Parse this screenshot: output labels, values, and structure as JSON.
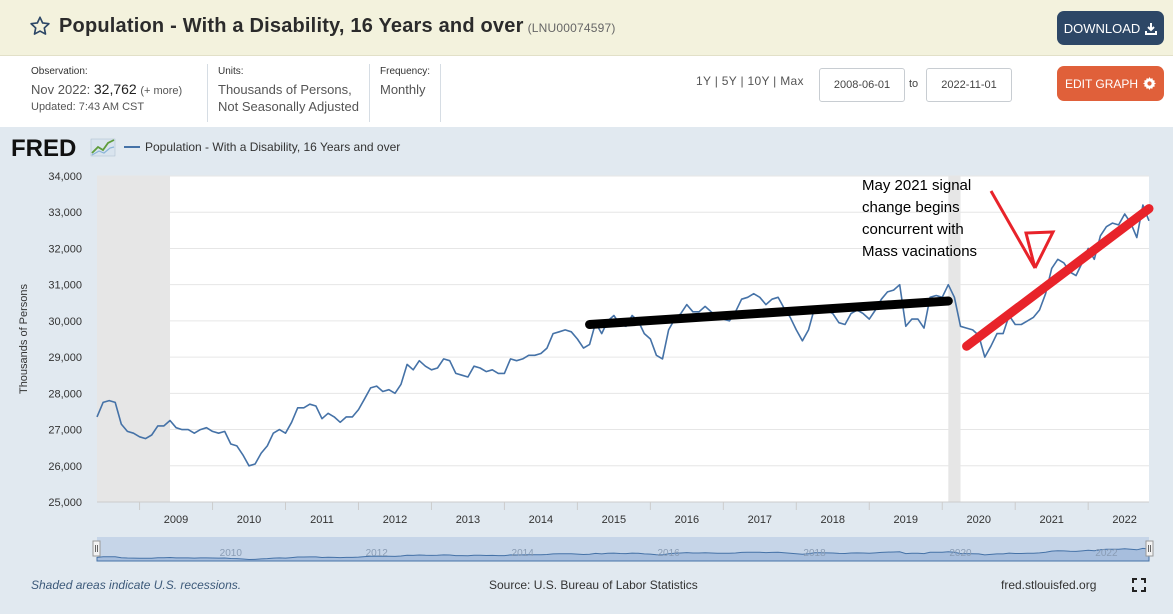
{
  "header": {
    "title": "Population - With a Disability, 16 Years and over",
    "series_id": "(LNU00074597)",
    "download_label": "DOWNLOAD"
  },
  "meta": {
    "observation_label": "Observation:",
    "observation_date": "Nov 2022:",
    "observation_value": "32,762",
    "observation_more": "(+ more)",
    "updated": "Updated: 7:43 AM CST",
    "units_label": "Units:",
    "units_line1": "Thousands of Persons,",
    "units_line2": "Not Seasonally Adjusted",
    "frequency_label": "Frequency:",
    "frequency_value": "Monthly",
    "range_links": "1Y | 5Y | 10Y | Max",
    "date_from": "2008-06-01",
    "date_to_label": "to",
    "date_to": "2022-11-01",
    "edit_label": "EDIT GRAPH"
  },
  "footer": {
    "recession_note": "Shaded areas indicate U.S. recessions.",
    "source": "Source: U.S. Bureau of Labor Statistics",
    "site": "fred.stlouisfed.org"
  },
  "logo_text": "FRED",
  "colors": {
    "series": "#4572a7",
    "annotation_black": "#000000",
    "annotation_red": "#e8232a",
    "download_button": "#2d4766",
    "edit_button": "#e0603a",
    "recession": "#e6e6e6"
  },
  "chart_data": {
    "type": "line",
    "title": "Population - With a Disability, 16 Years and over",
    "ylabel": "Thousands of Persons",
    "xlabel": "",
    "ylim": [
      25000,
      34000
    ],
    "yticks": [
      25000,
      26000,
      27000,
      28000,
      29000,
      30000,
      31000,
      32000,
      33000,
      34000
    ],
    "ytick_labels": [
      "25,000",
      "26,000",
      "27,000",
      "28,000",
      "29,000",
      "30,000",
      "31,000",
      "32,000",
      "33,000",
      "34,000"
    ],
    "xtick_labels": [
      "2009",
      "2010",
      "2011",
      "2012",
      "2013",
      "2014",
      "2015",
      "2016",
      "2017",
      "2018",
      "2019",
      "2020",
      "2021",
      "2022"
    ],
    "navigator_labels": [
      "2010",
      "2012",
      "2014",
      "2016",
      "2018",
      "2020",
      "2022"
    ],
    "grid": true,
    "legend": "top-left",
    "recessions": [
      {
        "start": "2008-06-01",
        "end": "2009-06-01"
      },
      {
        "start": "2020-02-01",
        "end": "2020-04-01"
      }
    ],
    "series": [
      {
        "name": "Population - With a Disability, 16 Years and over",
        "color": "#4572a7",
        "points": [
          [
            "2008-06",
            27350
          ],
          [
            "2008-07",
            27750
          ],
          [
            "2008-08",
            27800
          ],
          [
            "2008-09",
            27750
          ],
          [
            "2008-10",
            27150
          ],
          [
            "2008-11",
            26950
          ],
          [
            "2008-12",
            26900
          ],
          [
            "2009-01",
            26800
          ],
          [
            "2009-02",
            26750
          ],
          [
            "2009-03",
            26850
          ],
          [
            "2009-04",
            27100
          ],
          [
            "2009-05",
            27100
          ],
          [
            "2009-06",
            27250
          ],
          [
            "2009-07",
            27050
          ],
          [
            "2009-08",
            27000
          ],
          [
            "2009-09",
            27000
          ],
          [
            "2009-10",
            26900
          ],
          [
            "2009-11",
            27000
          ],
          [
            "2009-12",
            27050
          ],
          [
            "2010-01",
            26950
          ],
          [
            "2010-02",
            26900
          ],
          [
            "2010-03",
            26950
          ],
          [
            "2010-04",
            26600
          ],
          [
            "2010-05",
            26550
          ],
          [
            "2010-06",
            26300
          ],
          [
            "2010-07",
            26000
          ],
          [
            "2010-08",
            26050
          ],
          [
            "2010-09",
            26350
          ],
          [
            "2010-10",
            26550
          ],
          [
            "2010-11",
            26900
          ],
          [
            "2010-12",
            27000
          ],
          [
            "2011-01",
            26900
          ],
          [
            "2011-02",
            27200
          ],
          [
            "2011-03",
            27600
          ],
          [
            "2011-04",
            27600
          ],
          [
            "2011-05",
            27700
          ],
          [
            "2011-06",
            27650
          ],
          [
            "2011-07",
            27300
          ],
          [
            "2011-08",
            27450
          ],
          [
            "2011-09",
            27350
          ],
          [
            "2011-10",
            27200
          ],
          [
            "2011-11",
            27350
          ],
          [
            "2011-12",
            27350
          ],
          [
            "2012-01",
            27550
          ],
          [
            "2012-02",
            27850
          ],
          [
            "2012-03",
            28150
          ],
          [
            "2012-04",
            28200
          ],
          [
            "2012-05",
            28050
          ],
          [
            "2012-06",
            28100
          ],
          [
            "2012-07",
            28000
          ],
          [
            "2012-08",
            28250
          ],
          [
            "2012-09",
            28800
          ],
          [
            "2012-10",
            28650
          ],
          [
            "2012-11",
            28900
          ],
          [
            "2012-12",
            28750
          ],
          [
            "2013-01",
            28650
          ],
          [
            "2013-02",
            28700
          ],
          [
            "2013-03",
            28950
          ],
          [
            "2013-04",
            28900
          ],
          [
            "2013-05",
            28550
          ],
          [
            "2013-06",
            28500
          ],
          [
            "2013-07",
            28450
          ],
          [
            "2013-08",
            28750
          ],
          [
            "2013-09",
            28700
          ],
          [
            "2013-10",
            28600
          ],
          [
            "2013-11",
            28650
          ],
          [
            "2013-12",
            28550
          ],
          [
            "2014-01",
            28550
          ],
          [
            "2014-02",
            28950
          ],
          [
            "2014-03",
            28900
          ],
          [
            "2014-04",
            28950
          ],
          [
            "2014-05",
            29050
          ],
          [
            "2014-06",
            29050
          ],
          [
            "2014-07",
            29100
          ],
          [
            "2014-08",
            29250
          ],
          [
            "2014-09",
            29650
          ],
          [
            "2014-10",
            29700
          ],
          [
            "2014-11",
            29750
          ],
          [
            "2014-12",
            29700
          ],
          [
            "2015-01",
            29500
          ],
          [
            "2015-02",
            29250
          ],
          [
            "2015-03",
            29350
          ],
          [
            "2015-04",
            29950
          ],
          [
            "2015-05",
            29650
          ],
          [
            "2015-06",
            30000
          ],
          [
            "2015-07",
            30150
          ],
          [
            "2015-08",
            29900
          ],
          [
            "2015-09",
            29850
          ],
          [
            "2015-10",
            30150
          ],
          [
            "2015-11",
            30000
          ],
          [
            "2015-12",
            29650
          ],
          [
            "2016-01",
            29500
          ],
          [
            "2016-02",
            29050
          ],
          [
            "2016-03",
            28950
          ],
          [
            "2016-04",
            29750
          ],
          [
            "2016-05",
            30050
          ],
          [
            "2016-06",
            30200
          ],
          [
            "2016-07",
            30450
          ],
          [
            "2016-08",
            30250
          ],
          [
            "2016-09",
            30250
          ],
          [
            "2016-10",
            30400
          ],
          [
            "2016-11",
            30250
          ],
          [
            "2016-12",
            30100
          ],
          [
            "2017-01",
            30050
          ],
          [
            "2017-02",
            30000
          ],
          [
            "2017-03",
            30250
          ],
          [
            "2017-04",
            30600
          ],
          [
            "2017-05",
            30650
          ],
          [
            "2017-06",
            30750
          ],
          [
            "2017-07",
            30650
          ],
          [
            "2017-08",
            30450
          ],
          [
            "2017-09",
            30600
          ],
          [
            "2017-10",
            30650
          ],
          [
            "2017-11",
            30350
          ],
          [
            "2017-12",
            30100
          ],
          [
            "2018-01",
            29750
          ],
          [
            "2018-02",
            29450
          ],
          [
            "2018-03",
            29750
          ],
          [
            "2018-04",
            30350
          ],
          [
            "2018-05",
            30400
          ],
          [
            "2018-06",
            30300
          ],
          [
            "2018-07",
            30200
          ],
          [
            "2018-08",
            29950
          ],
          [
            "2018-09",
            29900
          ],
          [
            "2018-10",
            30200
          ],
          [
            "2018-11",
            30300
          ],
          [
            "2018-12",
            30200
          ],
          [
            "2019-01",
            30050
          ],
          [
            "2019-02",
            30300
          ],
          [
            "2019-03",
            30600
          ],
          [
            "2019-04",
            30800
          ],
          [
            "2019-05",
            30850
          ],
          [
            "2019-06",
            31000
          ],
          [
            "2019-07",
            29850
          ],
          [
            "2019-08",
            30050
          ],
          [
            "2019-09",
            30050
          ],
          [
            "2019-10",
            29800
          ],
          [
            "2019-11",
            30650
          ],
          [
            "2019-12",
            30700
          ],
          [
            "2020-01",
            30650
          ],
          [
            "2020-02",
            31000
          ],
          [
            "2020-03",
            30650
          ],
          [
            "2020-04",
            29850
          ],
          [
            "2020-05",
            29800
          ],
          [
            "2020-06",
            29750
          ],
          [
            "2020-07",
            29600
          ],
          [
            "2020-08",
            29000
          ],
          [
            "2020-09",
            29300
          ],
          [
            "2020-10",
            29650
          ],
          [
            "2020-11",
            29650
          ],
          [
            "2020-12",
            30150
          ],
          [
            "2021-01",
            29900
          ],
          [
            "2021-02",
            29900
          ],
          [
            "2021-03",
            30000
          ],
          [
            "2021-04",
            30100
          ],
          [
            "2021-05",
            30300
          ],
          [
            "2021-06",
            30750
          ],
          [
            "2021-07",
            31450
          ],
          [
            "2021-08",
            31700
          ],
          [
            "2021-09",
            31600
          ],
          [
            "2021-10",
            31350
          ],
          [
            "2021-11",
            31250
          ],
          [
            "2021-12",
            31600
          ],
          [
            "2022-01",
            32000
          ],
          [
            "2022-02",
            31700
          ],
          [
            "2022-03",
            32350
          ],
          [
            "2022-04",
            32600
          ],
          [
            "2022-05",
            32700
          ],
          [
            "2022-06",
            32650
          ],
          [
            "2022-07",
            32950
          ],
          [
            "2022-08",
            32700
          ],
          [
            "2022-09",
            32300
          ],
          [
            "2022-10",
            33200
          ],
          [
            "2022-11",
            32762
          ]
        ]
      }
    ],
    "annotations": [
      {
        "type": "line",
        "color": "black",
        "from": [
          "2015-03",
          29900
        ],
        "to": [
          "2020-02",
          30550
        ]
      },
      {
        "type": "line",
        "color": "red",
        "from": [
          "2020-05",
          29300
        ],
        "to": [
          "2022-11",
          33100
        ]
      },
      {
        "type": "arrow",
        "color": "red"
      },
      {
        "type": "text",
        "lines": [
          "May 2021 signal",
          "change begins",
          "concurrent with",
          "Mass vacinations"
        ]
      }
    ]
  }
}
